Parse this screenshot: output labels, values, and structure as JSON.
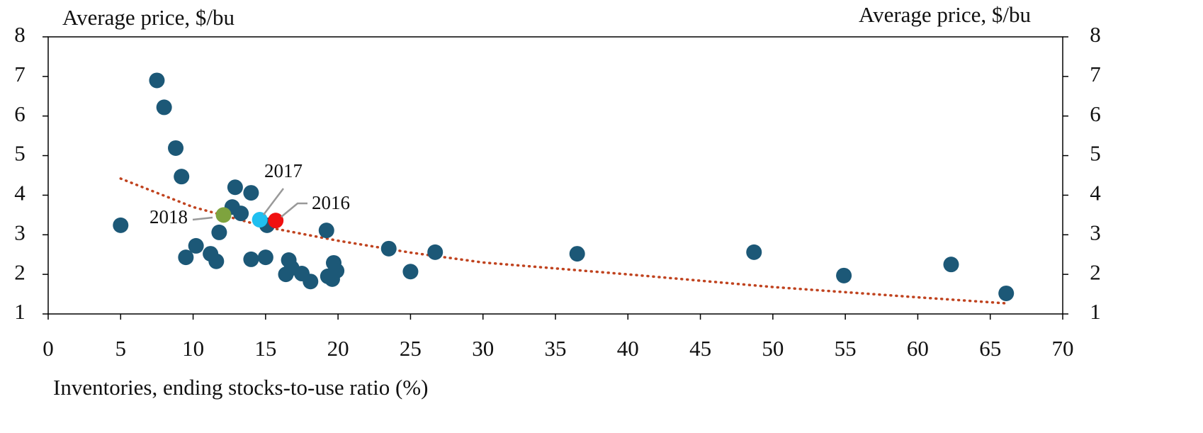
{
  "chart_data": {
    "type": "scatter",
    "y_label": "Average price, $/bu",
    "y2_label": "Average price, $/bu",
    "x_label": "Inventories, ending stocks-to-use ratio (%)",
    "xlim": [
      0,
      70
    ],
    "xticks": [
      0,
      5,
      10,
      15,
      20,
      25,
      30,
      35,
      40,
      45,
      50,
      55,
      60,
      65,
      70
    ],
    "ylim": [
      1,
      8
    ],
    "yticks": [
      1,
      2,
      3,
      4,
      5,
      6,
      7,
      8
    ],
    "y2lim": [
      1,
      8
    ],
    "y2ticks": [
      1,
      2,
      3,
      4,
      5,
      6,
      7,
      8
    ],
    "series": [
      {
        "color": "#1c5877",
        "x": [
          5.0,
          7.5,
          8.0,
          8.8,
          9.2,
          9.5,
          10.2,
          11.2,
          11.6,
          11.8,
          12.7,
          12.9,
          13.3,
          14.0,
          14.0,
          15.1,
          15.0,
          16.6,
          16.8,
          16.4,
          17.5,
          18.1,
          19.2,
          19.3,
          19.6,
          19.7,
          19.9,
          23.5,
          25.0,
          26.7,
          36.5,
          48.7,
          54.9,
          62.3,
          66.1
        ],
        "values": [
          3.24,
          6.9,
          6.22,
          5.19,
          4.47,
          2.43,
          2.72,
          2.52,
          2.33,
          3.06,
          3.7,
          4.2,
          3.54,
          4.06,
          2.38,
          3.24,
          2.43,
          2.36,
          2.16,
          2.0,
          2.02,
          1.82,
          3.11,
          1.95,
          1.88,
          2.29,
          2.09,
          2.65,
          2.07,
          2.56,
          2.52,
          2.56,
          1.97,
          2.25,
          1.52
        ]
      },
      {
        "name": "2018",
        "color": "#7ea33e",
        "x": [
          12.1
        ],
        "values": [
          3.5
        ]
      },
      {
        "name": "2017",
        "color": "#1fbff0",
        "x": [
          14.6
        ],
        "values": [
          3.38
        ]
      },
      {
        "name": "2016",
        "color": "#f01010",
        "x": [
          15.7
        ],
        "values": [
          3.36
        ]
      }
    ],
    "trendline": {
      "color": "#c0431f",
      "x": [
        5,
        10,
        15,
        20,
        25,
        30,
        40,
        50,
        60,
        66
      ],
      "values": [
        4.42,
        3.7,
        3.2,
        2.85,
        2.55,
        2.3,
        2.0,
        1.68,
        1.42,
        1.27
      ]
    }
  }
}
